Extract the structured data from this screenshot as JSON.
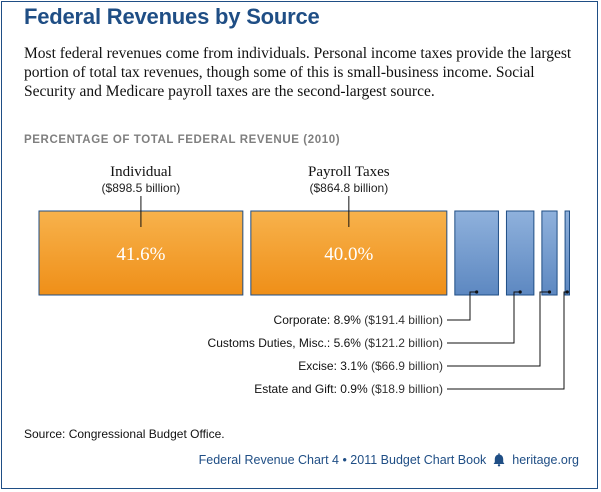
{
  "title": "Federal Revenues by Source",
  "subtitle": "Most federal revenues come from individuals. Personal income taxes provide the largest portion of total tax revenues, though some of this is small-business income. Social Security and Medicare payroll taxes are the second-largest source.",
  "section_label": "PERCENTAGE OF TOTAL FEDERAL REVENUE (2010)",
  "source_label": "Source:",
  "source_text": "Congressional Budget Office.",
  "footer": {
    "text": "Federal Revenue Chart 4 • 2011 Budget Chart Book",
    "site": "heritage.org",
    "icon": "liberty-bell-icon"
  },
  "colors": {
    "brand_blue": "#1f4e85",
    "orange": "#f29b26",
    "bar_blue": "#6f98cf"
  },
  "chart_data": {
    "type": "bar",
    "title": "PERCENTAGE OF TOTAL FEDERAL REVENUE (2010)",
    "categories": [
      "Individual",
      "Payroll Taxes",
      "Corporate",
      "Customs Duties, Misc.",
      "Excise",
      "Estate and Gift"
    ],
    "values": [
      41.6,
      40.0,
      8.9,
      5.6,
      3.1,
      0.9
    ],
    "value_labels": [
      "41.6%",
      "40.0%",
      "8.9%",
      "5.6%",
      "3.1%",
      "0.9%"
    ],
    "amounts": [
      "($898.5 billion)",
      "($864.8 billion)",
      "($191.4 billion)",
      "($121.2 billion)",
      "($66.9 billion)",
      "($18.9 billion)"
    ],
    "unit": "percent",
    "grid": false,
    "legend": "none"
  }
}
